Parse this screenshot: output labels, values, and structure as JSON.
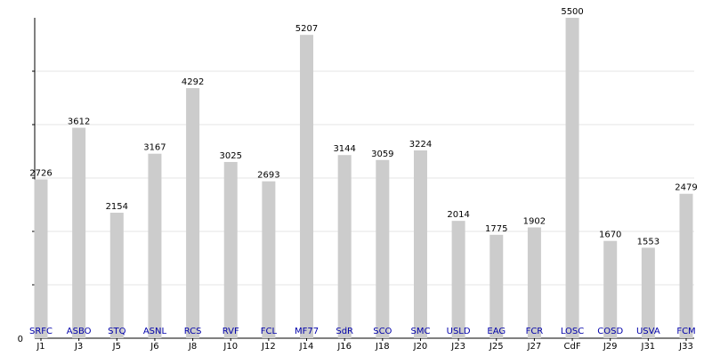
{
  "chart_data": {
    "type": "bar",
    "title": "",
    "xlabel": "",
    "ylabel": "",
    "ylim": [
      0,
      5500
    ],
    "grid": true,
    "y_tick_labels": [
      "0"
    ],
    "categories": [
      "J1",
      "J3",
      "J5",
      "J6",
      "J8",
      "J10",
      "J12",
      "J14",
      "J16",
      "J18",
      "J20",
      "J23",
      "J25",
      "J27",
      "CdF",
      "J29",
      "J31",
      "J33"
    ],
    "teams": [
      "SRFC",
      "ASBO",
      "STQ",
      "ASNL",
      "RCS",
      "RVF",
      "FCL",
      "MF77",
      "SdR",
      "SCO",
      "SMC",
      "USLD",
      "EAG",
      "FCR",
      "LOSC",
      "COSD",
      "USVA",
      "FCM"
    ],
    "values": [
      2726,
      3612,
      2154,
      3167,
      4292,
      3025,
      2693,
      5207,
      3144,
      3059,
      3224,
      2014,
      1775,
      1902,
      5500,
      1670,
      1553,
      2479
    ],
    "colors": {
      "bar": "#cccccc",
      "team_label": "#0000aa",
      "grid": "#e6e6e6",
      "axis": "#000000",
      "text": "#000000"
    }
  }
}
